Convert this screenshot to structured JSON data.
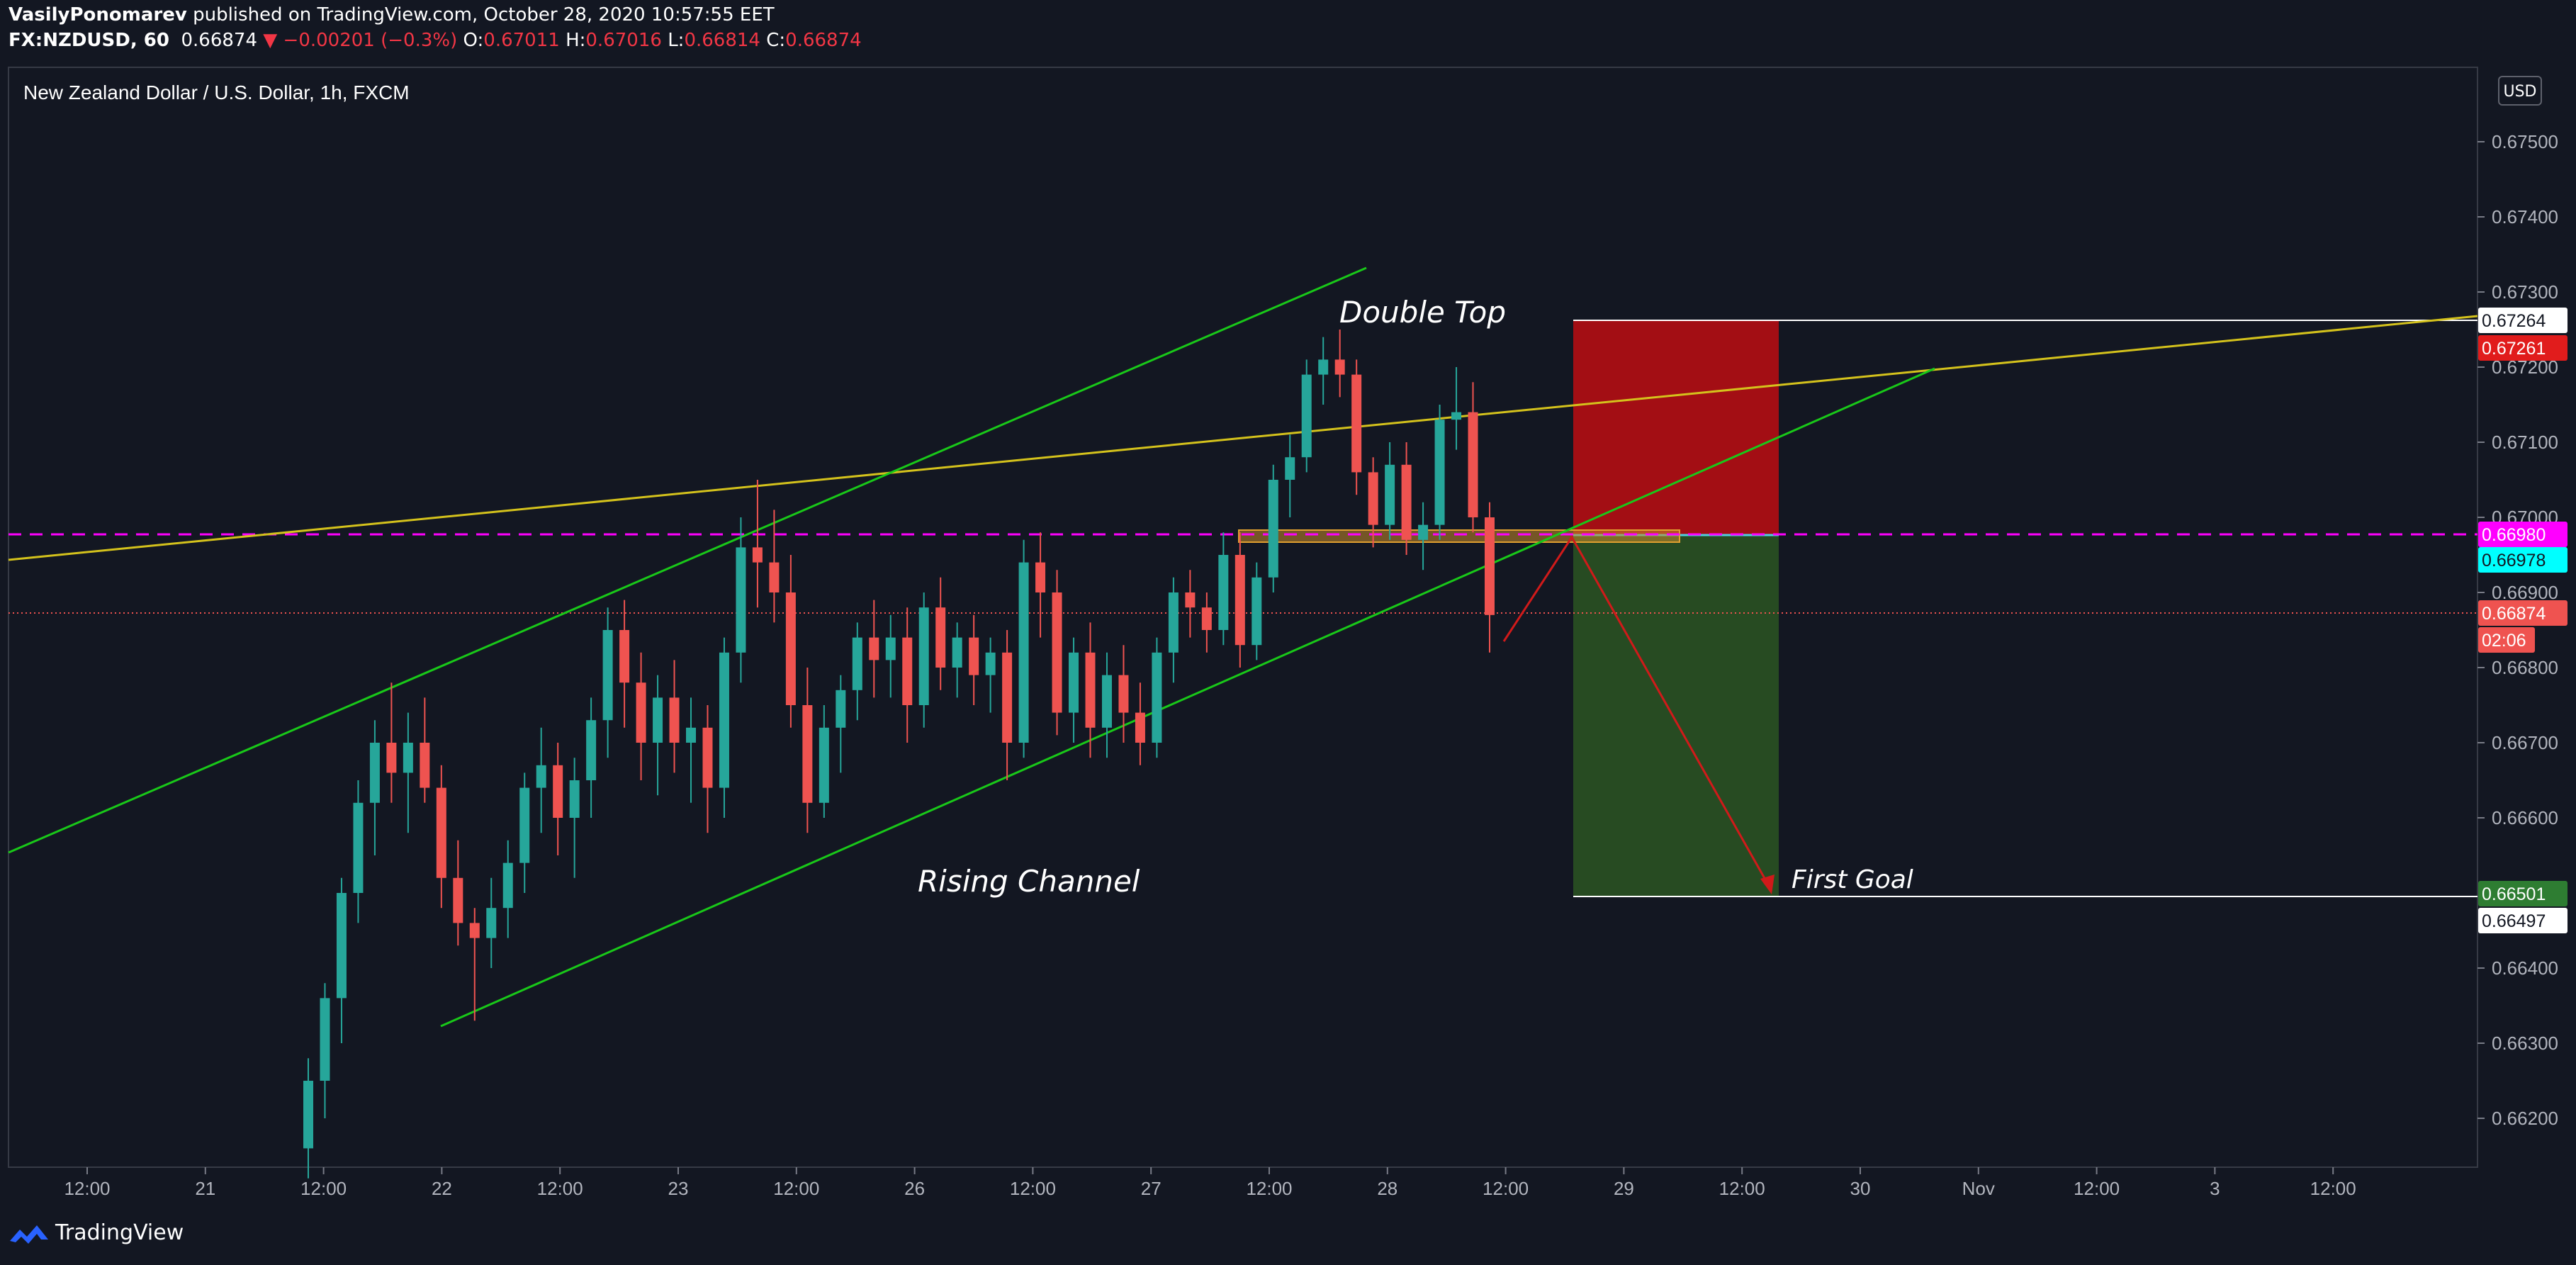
{
  "header": {
    "author": "VasilyPonomarev",
    "published_text": "published on TradingView.com, October 28, 2020 10:57:55 EET",
    "symbol": "FX:NZDUSD, 60",
    "last": "0.66874",
    "change": "−0.00201 (−0.3%)",
    "open_label": "O:",
    "open": "0.67011",
    "high_label": "H:",
    "high": "0.67016",
    "low_label": "L:",
    "low": "0.66814",
    "close_label": "C:",
    "close": "0.66874"
  },
  "legend_title": "New Zealand Dollar / U.S. Dollar, 1h, FXCM",
  "currency": "USD",
  "footer": {
    "brand": "TradingView",
    "icon": "tradingview-logo-icon"
  },
  "colors": {
    "background": "#131722",
    "up": "#26a69a",
    "down": "#ef5350",
    "channel": "#19c819",
    "trendline": "#d4c21c",
    "magenta": "#ff00ff",
    "stop_zone": "#a30e14",
    "target_zone": "#274b22"
  },
  "chart_data": {
    "type": "candlestick",
    "title": "New Zealand Dollar / U.S. Dollar, 1h, FXCM",
    "ylim": [
      0.6615,
      0.6764
    ],
    "y_ticks": [
      "0.67500",
      "0.67400",
      "0.67300",
      "0.67200",
      "0.67100",
      "0.67000",
      "0.66900",
      "0.66800",
      "0.66700",
      "0.66600",
      "0.66400",
      "0.66300",
      "0.66200"
    ],
    "x_ticks": [
      "12:00",
      "21",
      "12:00",
      "22",
      "12:00",
      "23",
      "12:00",
      "26",
      "12:00",
      "27",
      "12:00",
      "28",
      "12:00",
      "29",
      "12:00",
      "30",
      "Nov",
      "12:00",
      "3",
      "12:00"
    ],
    "price_labels": [
      {
        "value": "0.67264",
        "style": "white"
      },
      {
        "value": "0.67261",
        "style": "red"
      },
      {
        "value": "0.66980",
        "style": "magenta"
      },
      {
        "value": "0.66978",
        "style": "cyan"
      },
      {
        "value": "0.66874",
        "style": "last"
      },
      {
        "value": "02:06",
        "style": "countdown"
      },
      {
        "value": "0.66501",
        "style": "green"
      },
      {
        "value": "0.66497",
        "style": "white"
      }
    ],
    "annotations": [
      "Double Top",
      "Rising Channel",
      "First Goal"
    ],
    "levels": {
      "resistance_dashed": 0.6698,
      "last": 0.66874,
      "stop": 0.67264,
      "entry": 0.66978,
      "target": 0.66497
    },
    "series": [
      {
        "o": 0.6616,
        "h": 0.6628,
        "l": 0.6612,
        "c": 0.6625
      },
      {
        "o": 0.6625,
        "h": 0.6638,
        "l": 0.662,
        "c": 0.6636
      },
      {
        "o": 0.6636,
        "h": 0.6652,
        "l": 0.663,
        "c": 0.665
      },
      {
        "o": 0.665,
        "h": 0.6665,
        "l": 0.6646,
        "c": 0.6662
      },
      {
        "o": 0.6662,
        "h": 0.6673,
        "l": 0.6655,
        "c": 0.667
      },
      {
        "o": 0.667,
        "h": 0.6678,
        "l": 0.6662,
        "c": 0.6666
      },
      {
        "o": 0.6666,
        "h": 0.6674,
        "l": 0.6658,
        "c": 0.667
      },
      {
        "o": 0.667,
        "h": 0.6676,
        "l": 0.6662,
        "c": 0.6664
      },
      {
        "o": 0.6664,
        "h": 0.6667,
        "l": 0.6648,
        "c": 0.6652
      },
      {
        "o": 0.6652,
        "h": 0.6657,
        "l": 0.6643,
        "c": 0.6646
      },
      {
        "o": 0.6646,
        "h": 0.6648,
        "l": 0.6633,
        "c": 0.6644
      },
      {
        "o": 0.6644,
        "h": 0.6652,
        "l": 0.664,
        "c": 0.6648
      },
      {
        "o": 0.6648,
        "h": 0.6657,
        "l": 0.6644,
        "c": 0.6654
      },
      {
        "o": 0.6654,
        "h": 0.6666,
        "l": 0.665,
        "c": 0.6664
      },
      {
        "o": 0.6664,
        "h": 0.6672,
        "l": 0.6658,
        "c": 0.6667
      },
      {
        "o": 0.6667,
        "h": 0.667,
        "l": 0.6655,
        "c": 0.666
      },
      {
        "o": 0.666,
        "h": 0.6668,
        "l": 0.6652,
        "c": 0.6665
      },
      {
        "o": 0.6665,
        "h": 0.6676,
        "l": 0.666,
        "c": 0.6673
      },
      {
        "o": 0.6673,
        "h": 0.6688,
        "l": 0.6668,
        "c": 0.6685
      },
      {
        "o": 0.6685,
        "h": 0.6689,
        "l": 0.6672,
        "c": 0.6678
      },
      {
        "o": 0.6678,
        "h": 0.6682,
        "l": 0.6665,
        "c": 0.667
      },
      {
        "o": 0.667,
        "h": 0.6679,
        "l": 0.6663,
        "c": 0.6676
      },
      {
        "o": 0.6676,
        "h": 0.6681,
        "l": 0.6666,
        "c": 0.667
      },
      {
        "o": 0.667,
        "h": 0.6676,
        "l": 0.6662,
        "c": 0.6672
      },
      {
        "o": 0.6672,
        "h": 0.6675,
        "l": 0.6658,
        "c": 0.6664
      },
      {
        "o": 0.6664,
        "h": 0.6684,
        "l": 0.666,
        "c": 0.6682
      },
      {
        "o": 0.6682,
        "h": 0.67,
        "l": 0.6678,
        "c": 0.6696
      },
      {
        "o": 0.6696,
        "h": 0.6705,
        "l": 0.6688,
        "c": 0.6694
      },
      {
        "o": 0.6694,
        "h": 0.6701,
        "l": 0.6686,
        "c": 0.669
      },
      {
        "o": 0.669,
        "h": 0.6695,
        "l": 0.6672,
        "c": 0.6675
      },
      {
        "o": 0.6675,
        "h": 0.668,
        "l": 0.6658,
        "c": 0.6662
      },
      {
        "o": 0.6662,
        "h": 0.6675,
        "l": 0.666,
        "c": 0.6672
      },
      {
        "o": 0.6672,
        "h": 0.6679,
        "l": 0.6666,
        "c": 0.6677
      },
      {
        "o": 0.6677,
        "h": 0.6686,
        "l": 0.6673,
        "c": 0.6684
      },
      {
        "o": 0.6684,
        "h": 0.6689,
        "l": 0.6676,
        "c": 0.6681
      },
      {
        "o": 0.6681,
        "h": 0.6687,
        "l": 0.6676,
        "c": 0.6684
      },
      {
        "o": 0.6684,
        "h": 0.6688,
        "l": 0.667,
        "c": 0.6675
      },
      {
        "o": 0.6675,
        "h": 0.669,
        "l": 0.6672,
        "c": 0.6688
      },
      {
        "o": 0.6688,
        "h": 0.6692,
        "l": 0.6677,
        "c": 0.668
      },
      {
        "o": 0.668,
        "h": 0.6686,
        "l": 0.6676,
        "c": 0.6684
      },
      {
        "o": 0.6684,
        "h": 0.6687,
        "l": 0.6675,
        "c": 0.6679
      },
      {
        "o": 0.6679,
        "h": 0.6684,
        "l": 0.6674,
        "c": 0.6682
      },
      {
        "o": 0.6682,
        "h": 0.6685,
        "l": 0.6665,
        "c": 0.667
      },
      {
        "o": 0.667,
        "h": 0.6697,
        "l": 0.6668,
        "c": 0.6694
      },
      {
        "o": 0.6694,
        "h": 0.6698,
        "l": 0.6684,
        "c": 0.669
      },
      {
        "o": 0.669,
        "h": 0.6693,
        "l": 0.6671,
        "c": 0.6674
      },
      {
        "o": 0.6674,
        "h": 0.6684,
        "l": 0.667,
        "c": 0.6682
      },
      {
        "o": 0.6682,
        "h": 0.6686,
        "l": 0.6668,
        "c": 0.6672
      },
      {
        "o": 0.6672,
        "h": 0.6682,
        "l": 0.6668,
        "c": 0.6679
      },
      {
        "o": 0.6679,
        "h": 0.6683,
        "l": 0.667,
        "c": 0.6674
      },
      {
        "o": 0.6674,
        "h": 0.6678,
        "l": 0.6667,
        "c": 0.667
      },
      {
        "o": 0.667,
        "h": 0.6684,
        "l": 0.6668,
        "c": 0.6682
      },
      {
        "o": 0.6682,
        "h": 0.6692,
        "l": 0.6678,
        "c": 0.669
      },
      {
        "o": 0.669,
        "h": 0.6693,
        "l": 0.6684,
        "c": 0.6688
      },
      {
        "o": 0.6688,
        "h": 0.669,
        "l": 0.6682,
        "c": 0.6685
      },
      {
        "o": 0.6685,
        "h": 0.6698,
        "l": 0.6683,
        "c": 0.6695
      },
      {
        "o": 0.6695,
        "h": 0.6698,
        "l": 0.668,
        "c": 0.6683
      },
      {
        "o": 0.6683,
        "h": 0.6694,
        "l": 0.6681,
        "c": 0.6692
      },
      {
        "o": 0.6692,
        "h": 0.6707,
        "l": 0.669,
        "c": 0.6705
      },
      {
        "o": 0.6705,
        "h": 0.6711,
        "l": 0.67,
        "c": 0.6708
      },
      {
        "o": 0.6708,
        "h": 0.6721,
        "l": 0.6706,
        "c": 0.6719
      },
      {
        "o": 0.6719,
        "h": 0.6724,
        "l": 0.6715,
        "c": 0.6721
      },
      {
        "o": 0.6721,
        "h": 0.6725,
        "l": 0.6716,
        "c": 0.6719
      },
      {
        "o": 0.6719,
        "h": 0.6721,
        "l": 0.6703,
        "c": 0.6706
      },
      {
        "o": 0.6706,
        "h": 0.6708,
        "l": 0.6696,
        "c": 0.6699
      },
      {
        "o": 0.6699,
        "h": 0.671,
        "l": 0.6697,
        "c": 0.6707
      },
      {
        "o": 0.6707,
        "h": 0.671,
        "l": 0.6695,
        "c": 0.6697
      },
      {
        "o": 0.6697,
        "h": 0.6702,
        "l": 0.6693,
        "c": 0.6699
      },
      {
        "o": 0.6699,
        "h": 0.6715,
        "l": 0.6697,
        "c": 0.6713
      },
      {
        "o": 0.6713,
        "h": 0.672,
        "l": 0.6709,
        "c": 0.6714
      },
      {
        "o": 0.6714,
        "h": 0.6718,
        "l": 0.6698,
        "c": 0.67
      },
      {
        "o": 0.67,
        "h": 0.6702,
        "l": 0.6682,
        "c": 0.6687
      }
    ]
  }
}
